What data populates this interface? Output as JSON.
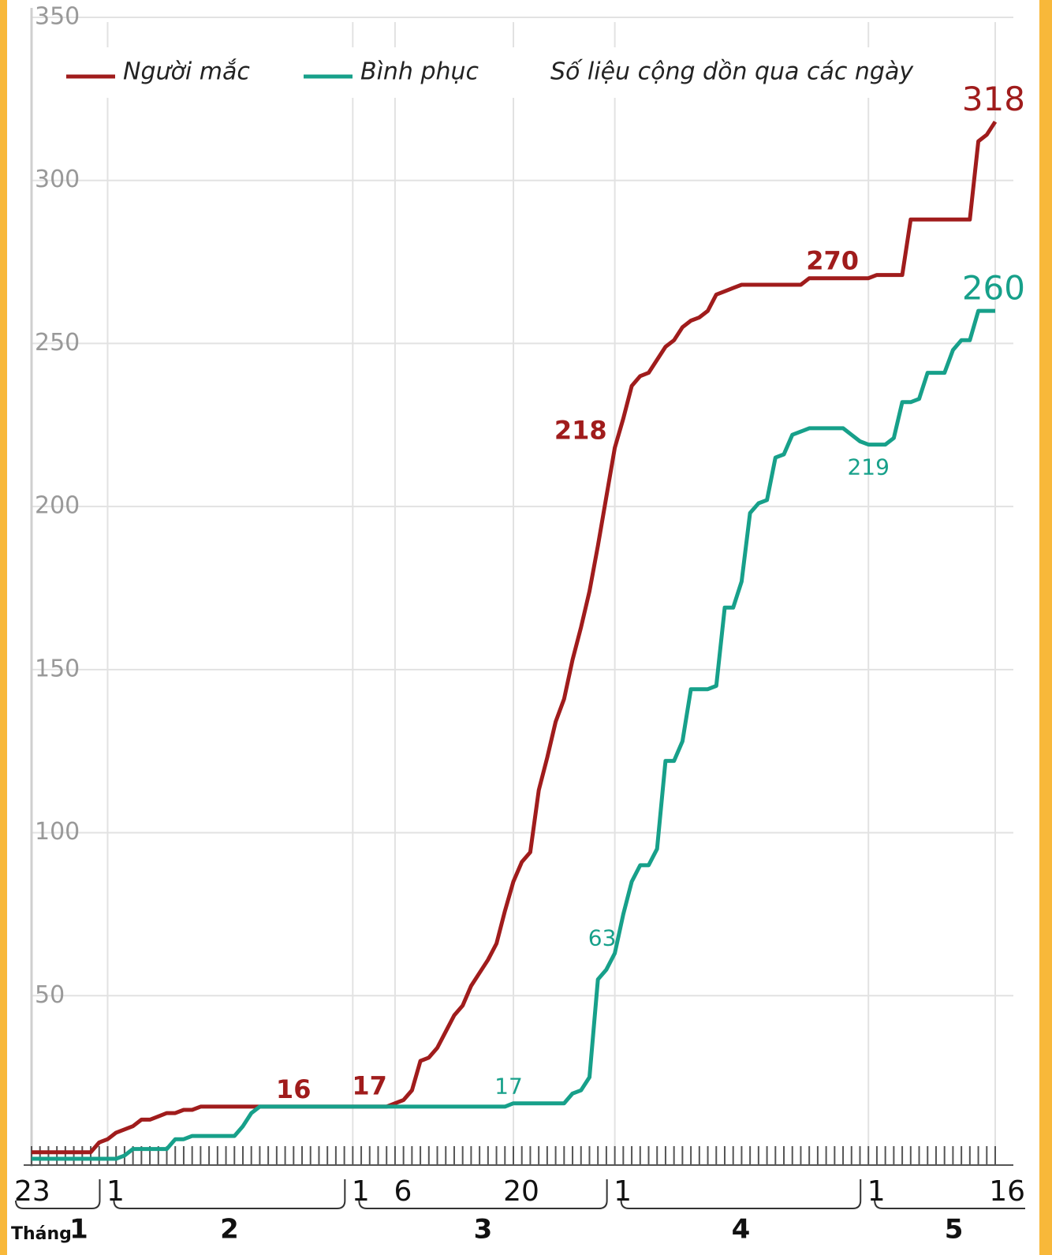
{
  "chart_data": {
    "type": "line",
    "subtitle": "Số liệu cộng dồn qua các ngày",
    "month_prefix": "Tháng",
    "months": [
      "1",
      "2",
      "3",
      "4",
      "5"
    ],
    "categories": [
      "23",
      null,
      null,
      null,
      null,
      null,
      null,
      null,
      null,
      "1",
      null,
      null,
      null,
      null,
      null,
      null,
      null,
      null,
      null,
      null,
      null,
      null,
      null,
      null,
      null,
      null,
      null,
      null,
      null,
      null,
      null,
      null,
      null,
      null,
      null,
      null,
      null,
      null,
      "1",
      null,
      null,
      null,
      null,
      "6",
      null,
      null,
      null,
      null,
      null,
      null,
      null,
      null,
      null,
      null,
      null,
      null,
      null,
      "20",
      null,
      null,
      null,
      null,
      null,
      null,
      null,
      null,
      null,
      null,
      null,
      "1",
      null,
      null,
      null,
      null,
      null,
      null,
      null,
      null,
      null,
      null,
      null,
      null,
      null,
      null,
      null,
      null,
      null,
      null,
      null,
      null,
      null,
      null,
      null,
      null,
      null,
      null,
      null,
      null,
      null,
      "1",
      null,
      null,
      null,
      null,
      null,
      null,
      null,
      null,
      null,
      null,
      null,
      null,
      null,
      null,
      "16"
    ],
    "series": [
      {
        "name": "Người mắc",
        "color": "#a01c1c",
        "values": [
          2,
          2,
          2,
          2,
          2,
          2,
          2,
          2,
          5,
          6,
          8,
          9,
          10,
          12,
          12,
          13,
          14,
          14,
          15,
          15,
          16,
          16,
          16,
          16,
          16,
          16,
          16,
          16,
          16,
          16,
          16,
          16,
          16,
          16,
          16,
          16,
          16,
          16,
          16,
          16,
          16,
          16,
          16,
          17,
          18,
          21,
          30,
          31,
          34,
          39,
          44,
          47,
          53,
          57,
          61,
          66,
          76,
          85,
          91,
          94,
          113,
          123,
          134,
          141,
          153,
          163,
          174,
          188,
          203,
          218,
          227,
          237,
          240,
          241,
          245,
          249,
          251,
          255,
          257,
          258,
          260,
          265,
          266,
          267,
          268,
          268,
          268,
          268,
          268,
          268,
          268,
          268,
          270,
          270,
          270,
          270,
          270,
          270,
          270,
          270,
          271,
          271,
          271,
          271,
          288,
          288,
          288,
          288,
          288,
          288,
          288,
          288,
          312,
          314,
          318
        ],
        "value_labels": [
          null,
          null,
          null,
          null,
          null,
          null,
          null,
          null,
          null,
          null,
          null,
          null,
          null,
          null,
          null,
          null,
          null,
          null,
          null,
          null,
          null,
          null,
          null,
          null,
          null,
          null,
          null,
          null,
          null,
          null,
          null,
          null,
          null,
          null,
          "16",
          null,
          null,
          null,
          null,
          null,
          null,
          null,
          null,
          "17",
          null,
          null,
          null,
          null,
          null,
          null,
          null,
          null,
          null,
          null,
          null,
          null,
          null,
          null,
          null,
          null,
          null,
          null,
          null,
          null,
          null,
          null,
          null,
          null,
          null,
          "218",
          null,
          null,
          null,
          null,
          null,
          null,
          null,
          null,
          null,
          null,
          null,
          null,
          null,
          null,
          null,
          null,
          null,
          null,
          null,
          null,
          null,
          null,
          null,
          null,
          null,
          null,
          "270",
          null,
          null,
          null,
          null,
          null,
          null,
          null,
          null,
          null,
          null,
          null,
          null,
          null,
          null,
          null,
          null,
          null,
          "318"
        ]
      },
      {
        "name": "Bình phục",
        "color": "#17a08a",
        "values": [
          0,
          0,
          0,
          0,
          0,
          0,
          0,
          0,
          0,
          0,
          0,
          1,
          3,
          3,
          3,
          3,
          3,
          6,
          6,
          7,
          7,
          7,
          7,
          7,
          7,
          10,
          14,
          16,
          16,
          16,
          16,
          16,
          16,
          16,
          16,
          16,
          16,
          16,
          16,
          16,
          16,
          16,
          16,
          16,
          16,
          16,
          16,
          16,
          16,
          16,
          16,
          16,
          16,
          16,
          16,
          16,
          16,
          17,
          17,
          17,
          17,
          17,
          17,
          17,
          20,
          21,
          25,
          55,
          58,
          63,
          75,
          85,
          90,
          90,
          95,
          122,
          122,
          128,
          144,
          144,
          144,
          145,
          169,
          169,
          177,
          198,
          201,
          202,
          215,
          216,
          222,
          223,
          224,
          224,
          224,
          224,
          224,
          222,
          220,
          219,
          219,
          219,
          221,
          232,
          232,
          233,
          241,
          241,
          241,
          248,
          251,
          251,
          260,
          260,
          260
        ],
        "value_labels": [
          null,
          null,
          null,
          null,
          null,
          null,
          null,
          null,
          null,
          null,
          null,
          null,
          null,
          null,
          null,
          null,
          null,
          null,
          null,
          null,
          null,
          null,
          null,
          null,
          null,
          null,
          null,
          null,
          null,
          null,
          null,
          null,
          null,
          null,
          null,
          null,
          null,
          null,
          null,
          null,
          null,
          null,
          null,
          null,
          null,
          null,
          null,
          null,
          null,
          null,
          null,
          null,
          null,
          null,
          null,
          null,
          null,
          "17",
          null,
          null,
          null,
          null,
          null,
          null,
          null,
          null,
          null,
          null,
          null,
          "63",
          null,
          null,
          null,
          null,
          null,
          null,
          null,
          null,
          null,
          null,
          null,
          null,
          null,
          null,
          null,
          null,
          null,
          null,
          null,
          null,
          null,
          null,
          null,
          null,
          null,
          null,
          null,
          null,
          null,
          "219",
          null,
          null,
          null,
          null,
          null,
          null,
          null,
          null,
          null,
          null,
          null,
          null,
          null,
          null,
          "260"
        ]
      }
    ],
    "ylim": [
      0,
      350
    ],
    "yticks": [
      50,
      100,
      150,
      200,
      250,
      300,
      350
    ],
    "grid": true
  }
}
